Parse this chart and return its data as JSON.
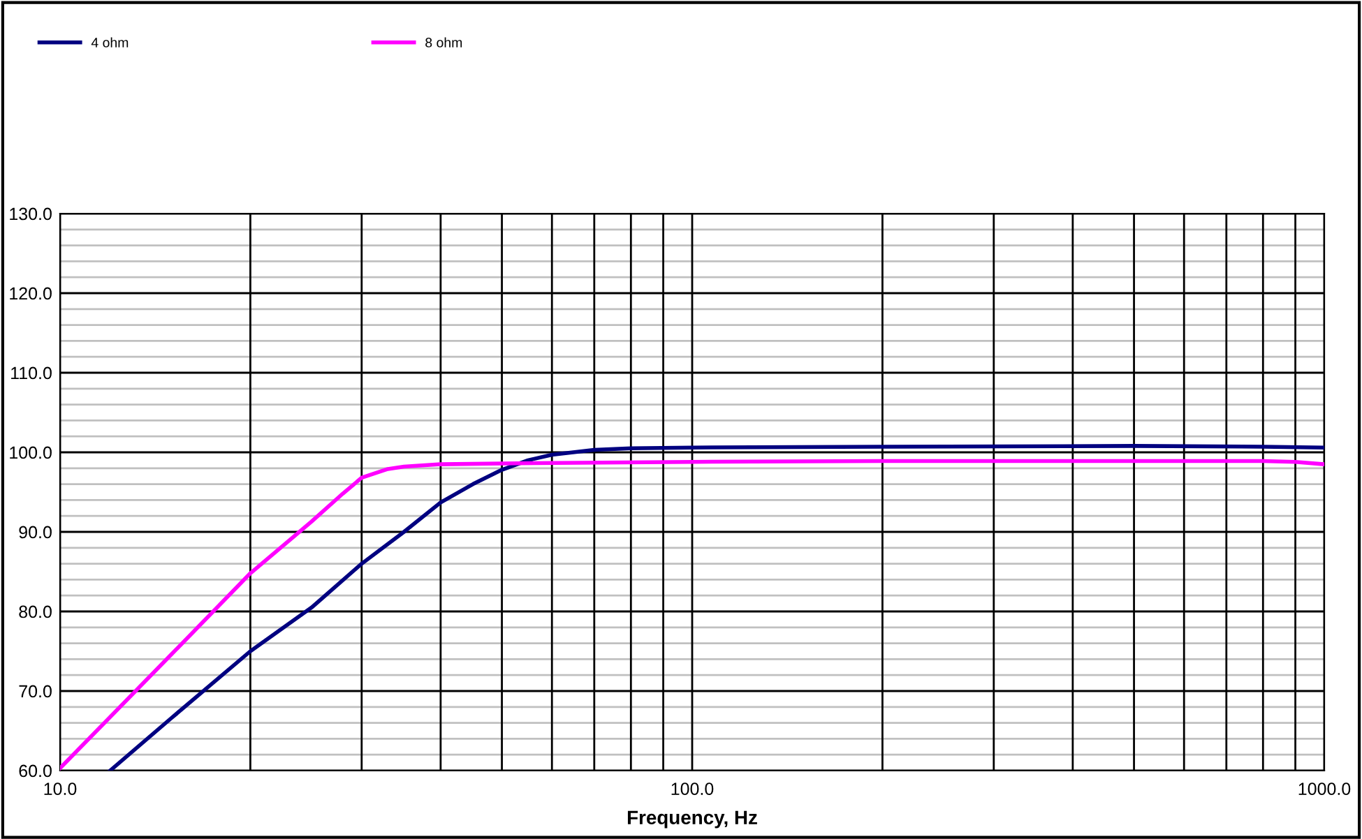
{
  "chart_data": {
    "type": "line",
    "xlabel": "Frequency, Hz",
    "log": "x",
    "grid": true,
    "legend": "top left",
    "marker": "none",
    "line_style": "solid",
    "xlim": [
      10,
      1000
    ],
    "ylim": [
      60,
      130
    ],
    "xticks": [
      {
        "value": 10,
        "label": "10.0"
      },
      {
        "value": 20,
        "label": null
      },
      {
        "value": 30,
        "label": null
      },
      {
        "value": 40,
        "label": null
      },
      {
        "value": 50,
        "label": null
      },
      {
        "value": 60,
        "label": null
      },
      {
        "value": 70,
        "label": null
      },
      {
        "value": 80,
        "label": null
      },
      {
        "value": 90,
        "label": null
      },
      {
        "value": 100,
        "label": "100.0"
      },
      {
        "value": 200,
        "label": null
      },
      {
        "value": 300,
        "label": null
      },
      {
        "value": 400,
        "label": null
      },
      {
        "value": 500,
        "label": null
      },
      {
        "value": 600,
        "label": null
      },
      {
        "value": 700,
        "label": null
      },
      {
        "value": 800,
        "label": null
      },
      {
        "value": 900,
        "label": null
      },
      {
        "value": 1000,
        "label": "1000.0"
      }
    ],
    "yticks": [
      {
        "value": 60,
        "label": "60.0"
      },
      {
        "value": 62,
        "label": null
      },
      {
        "value": 64,
        "label": null
      },
      {
        "value": 66,
        "label": null
      },
      {
        "value": 68,
        "label": null
      },
      {
        "value": 70,
        "label": "70.0"
      },
      {
        "value": 72,
        "label": null
      },
      {
        "value": 74,
        "label": null
      },
      {
        "value": 76,
        "label": null
      },
      {
        "value": 78,
        "label": null
      },
      {
        "value": 80,
        "label": "80.0"
      },
      {
        "value": 82,
        "label": null
      },
      {
        "value": 84,
        "label": null
      },
      {
        "value": 86,
        "label": null
      },
      {
        "value": 88,
        "label": null
      },
      {
        "value": 90,
        "label": "90.0"
      },
      {
        "value": 92,
        "label": null
      },
      {
        "value": 94,
        "label": null
      },
      {
        "value": 96,
        "label": null
      },
      {
        "value": 98,
        "label": null
      },
      {
        "value": 100,
        "label": "100.0"
      },
      {
        "value": 102,
        "label": null
      },
      {
        "value": 104,
        "label": null
      },
      {
        "value": 106,
        "label": null
      },
      {
        "value": 108,
        "label": null
      },
      {
        "value": 110,
        "label": "110.0"
      },
      {
        "value": 112,
        "label": null
      },
      {
        "value": 114,
        "label": null
      },
      {
        "value": 116,
        "label": null
      },
      {
        "value": 118,
        "label": null
      },
      {
        "value": 120,
        "label": "120.0"
      },
      {
        "value": 122,
        "label": null
      },
      {
        "value": 124,
        "label": null
      },
      {
        "value": 126,
        "label": null
      },
      {
        "value": 128,
        "label": null
      },
      {
        "value": 130,
        "label": "130.0"
      }
    ],
    "series": [
      {
        "name": "4 ohm",
        "color": "#000080",
        "x": [
          12,
          15,
          20,
          25,
          30,
          35,
          40,
          45,
          50,
          55,
          60,
          70,
          80,
          100,
          200,
          500,
          800,
          1000
        ],
        "values": [
          60,
          66.6,
          75,
          80.5,
          86,
          90,
          93.7,
          96,
          97.8,
          99,
          99.7,
          100.3,
          100.5,
          100.6,
          100.7,
          100.8,
          100.7,
          100.6
        ]
      },
      {
        "name": "8 ohm",
        "color": "#ff00ff",
        "x": [
          10,
          15,
          20,
          25,
          28,
          30,
          33,
          35,
          40,
          50,
          100,
          200,
          500,
          800,
          900,
          1000
        ],
        "values": [
          60.3,
          74.6,
          84.8,
          91.3,
          94.8,
          96.8,
          97.9,
          98.2,
          98.5,
          98.6,
          98.8,
          98.9,
          98.9,
          98.9,
          98.8,
          98.5
        ]
      }
    ]
  }
}
